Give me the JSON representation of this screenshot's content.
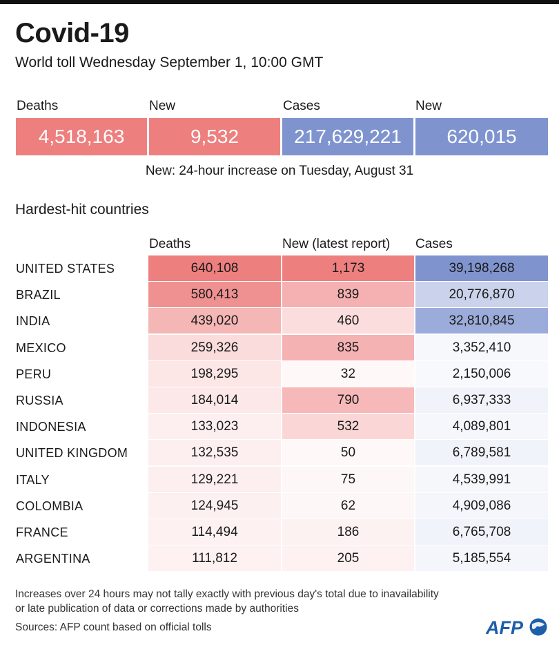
{
  "header": {
    "title": "Covid-19",
    "subtitle": "World toll Wednesday September 1, 10:00 GMT"
  },
  "totals": {
    "deaths_label": "Deaths",
    "deaths_value": "4,518,163",
    "new_deaths_label": "New",
    "new_deaths_value": "9,532",
    "cases_label": "Cases",
    "cases_value": "217,629,221",
    "new_cases_label": "New",
    "new_cases_value": "620,015",
    "note": "New: 24-hour increase on Tuesday, August 31"
  },
  "section": {
    "title": "Hardest-hit countries"
  },
  "colors": {
    "red_accent": "#ee7f7f",
    "blue_accent": "#7f94cf"
  },
  "chart_data": {
    "type": "table",
    "title": "Hardest-hit countries",
    "columns": [
      "Deaths",
      "New (latest report)",
      "Cases"
    ],
    "rows": [
      {
        "country": "UNITED STATES",
        "deaths": 640108,
        "new": 1173,
        "cases": 39198268
      },
      {
        "country": "BRAZIL",
        "deaths": 580413,
        "new": 839,
        "cases": 20776870
      },
      {
        "country": "INDIA",
        "deaths": 439020,
        "new": 460,
        "cases": 32810845
      },
      {
        "country": "MEXICO",
        "deaths": 259326,
        "new": 835,
        "cases": 3352410
      },
      {
        "country": "PERU",
        "deaths": 198295,
        "new": 32,
        "cases": 2150006
      },
      {
        "country": "RUSSIA",
        "deaths": 184014,
        "new": 790,
        "cases": 6937333
      },
      {
        "country": "INDONESIA",
        "deaths": 133023,
        "new": 532,
        "cases": 4089801
      },
      {
        "country": "UNITED KINGDOM",
        "deaths": 132535,
        "new": 50,
        "cases": 6789581
      },
      {
        "country": "ITALY",
        "deaths": 129221,
        "new": 75,
        "cases": 4539991
      },
      {
        "country": "COLOMBIA",
        "deaths": 124945,
        "new": 62,
        "cases": 4909086
      },
      {
        "country": "FRANCE",
        "deaths": 114494,
        "new": 186,
        "cases": 6765708
      },
      {
        "country": "ARGENTINA",
        "deaths": 111812,
        "new": 205,
        "cases": 5185554
      }
    ]
  },
  "footer": {
    "footnote_line1": "Increases over 24 hours may not tally exactly with previous day's total due to inavailability",
    "footnote_line2": "or late publication of data or corrections made by authorities",
    "sources": "Sources: AFP count based on official tolls",
    "logo_text": "AFP"
  }
}
